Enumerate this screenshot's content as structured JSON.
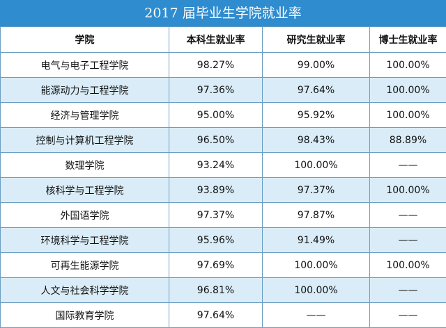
{
  "title": "2017 届毕业生学院就业率",
  "headers": [
    "学院",
    "本科生就业率",
    "研究生就业率",
    "博士生就业率"
  ],
  "rows": [
    [
      "电气与电子工程学院",
      "98.27%",
      "99.00%",
      "100.00%"
    ],
    [
      "能源动力与工程学院",
      "97.36%",
      "97.64%",
      "100.00%"
    ],
    [
      "经济与管理学院",
      "95.00%",
      "95.92%",
      "100.00%"
    ],
    [
      "控制与计算机工程学院",
      "96.50%",
      "98.43%",
      "88.89%"
    ],
    [
      "数理学院",
      "93.24%",
      "100.00%",
      "——"
    ],
    [
      "核科学与工程学院",
      "93.89%",
      "97.37%",
      "100.00%"
    ],
    [
      "外国语学院",
      "97.37%",
      "97.87%",
      "——"
    ],
    [
      "环境科学与工程学院",
      "95.96%",
      "91.49%",
      "——"
    ],
    [
      "可再生能源学院",
      "97.69%",
      "100.00%",
      "100.00%"
    ],
    [
      "人文与社会科学学院",
      "96.81%",
      "100.00%",
      "——"
    ],
    [
      "国际教育学院",
      "97.64%",
      "——",
      "——"
    ]
  ],
  "colors": {
    "header_bar": "#2e8ccf",
    "stripe": "#d9ecf7",
    "border": "#6a9ec2"
  }
}
